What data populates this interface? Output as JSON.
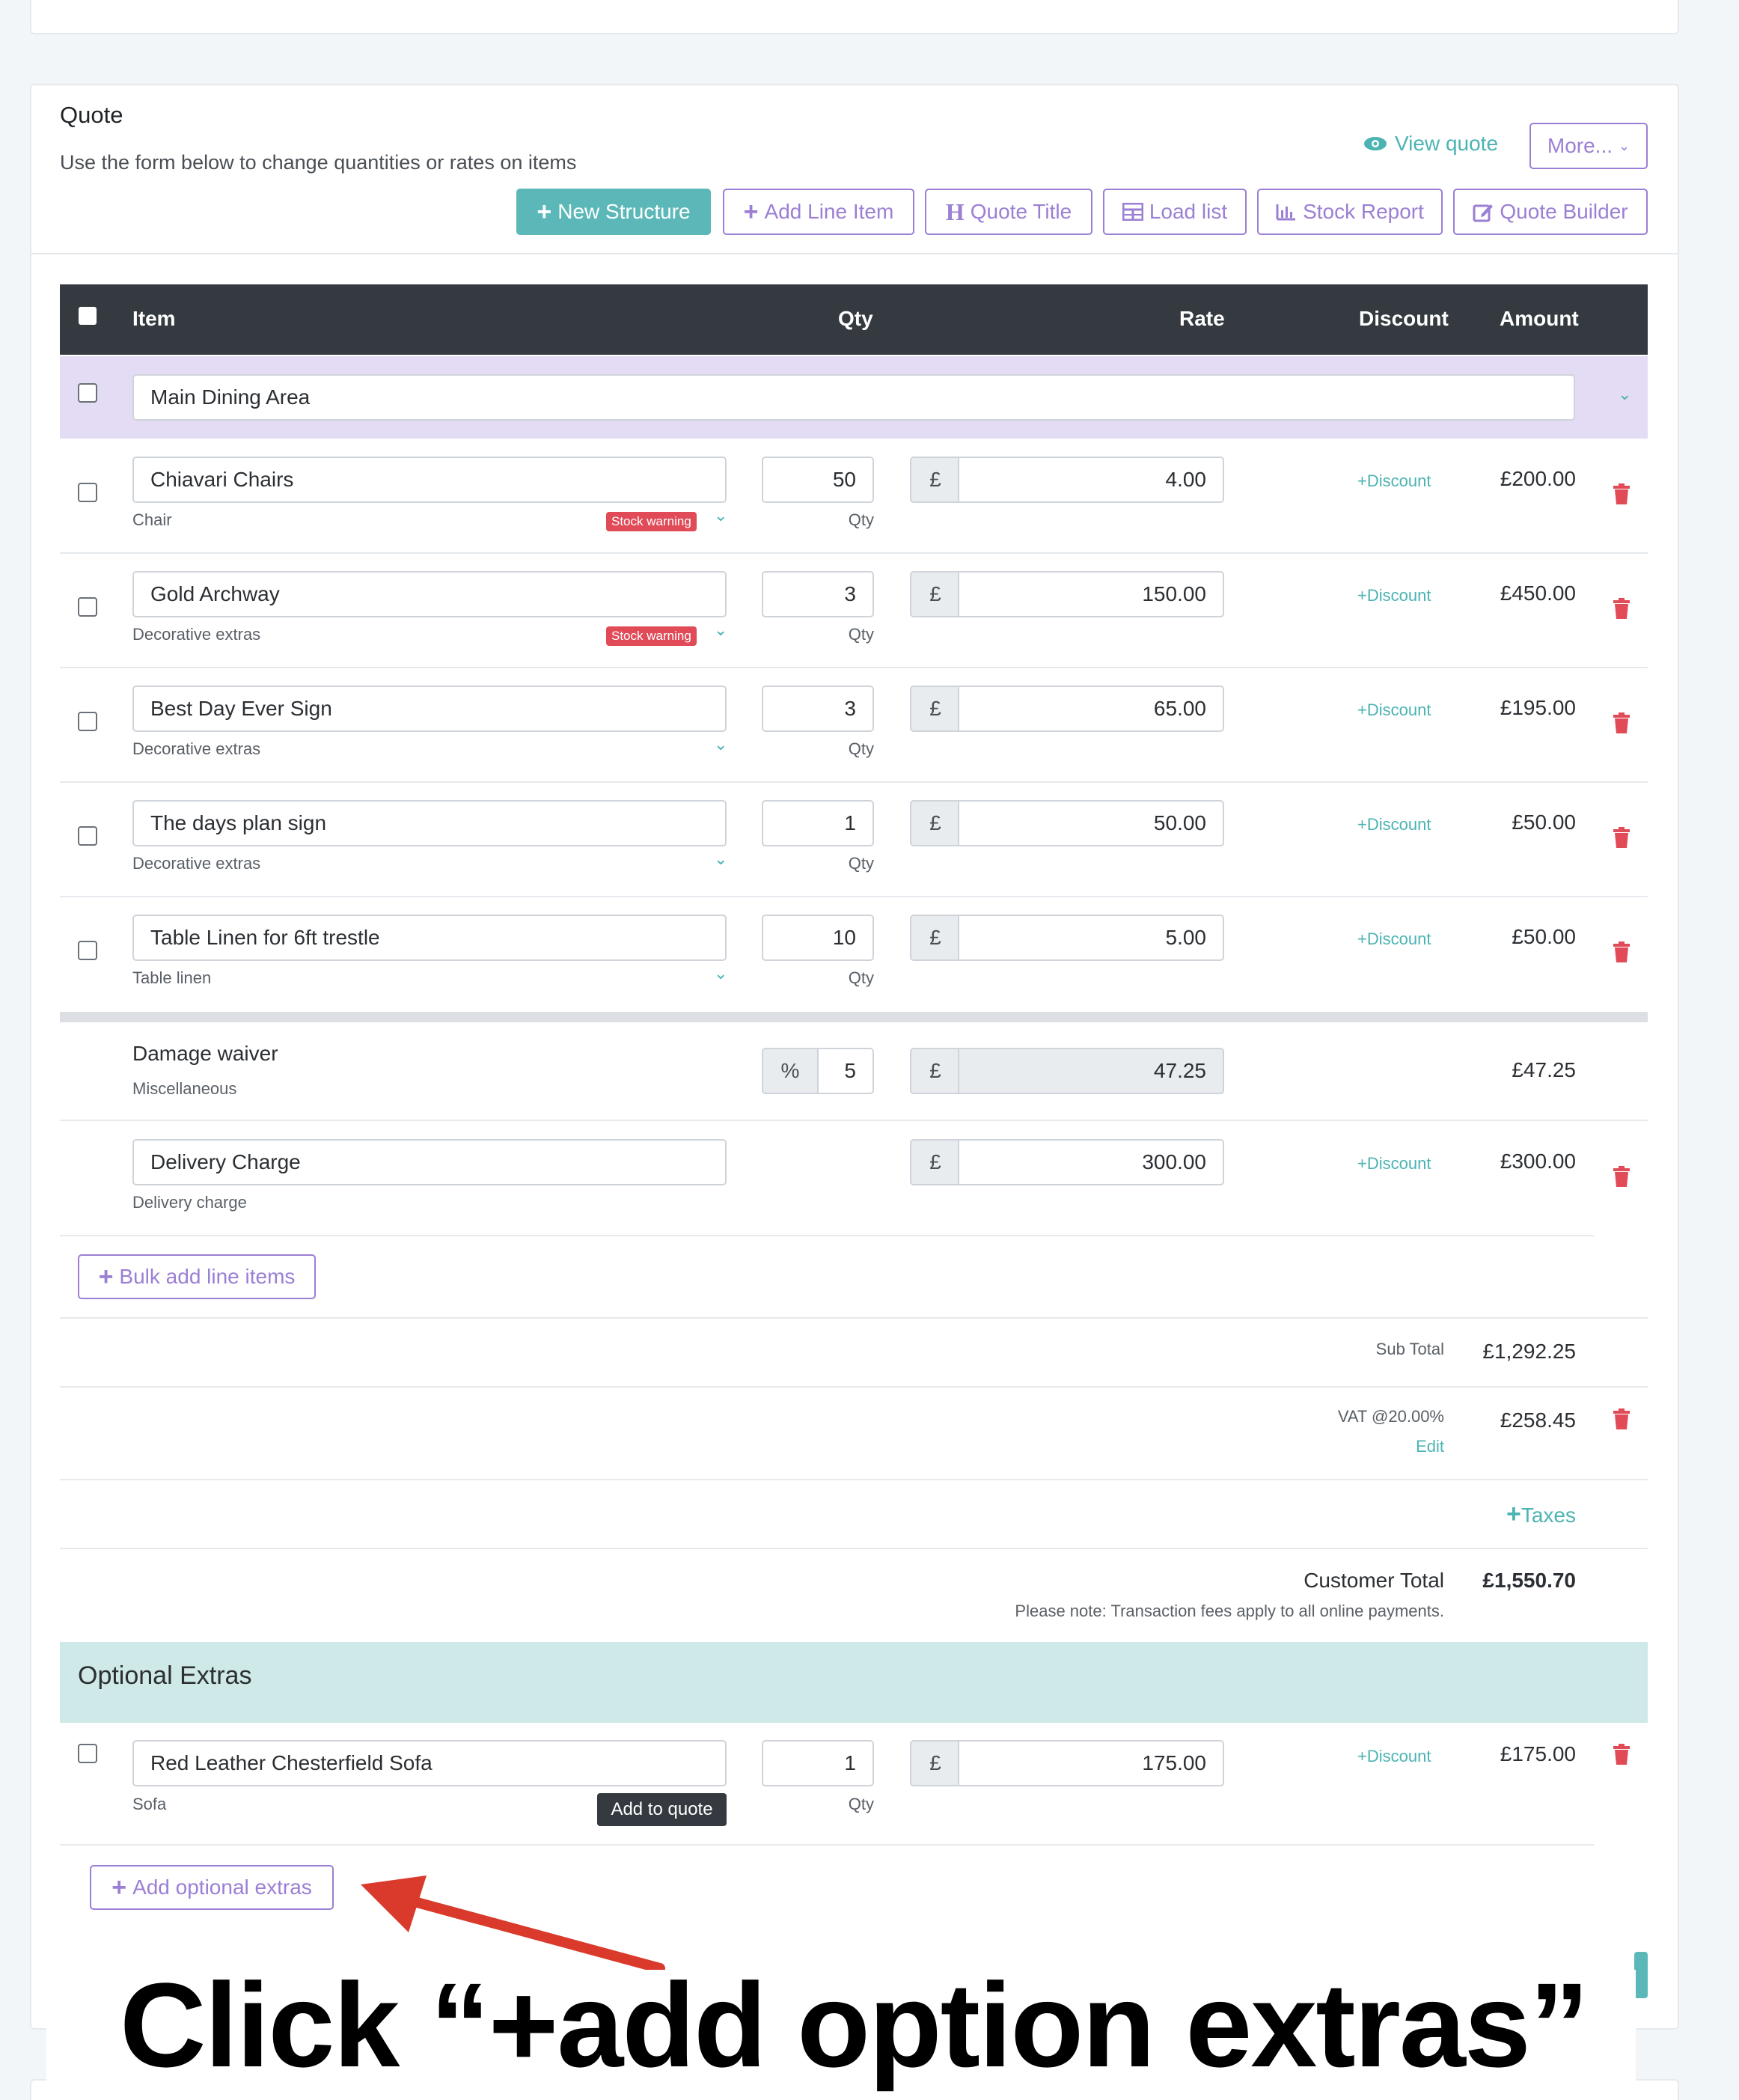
{
  "header": {
    "title": "Quote",
    "subtitle": "Use the form below to change quantities or rates on items",
    "view_quote": "View quote",
    "more": "More..."
  },
  "toolbar": {
    "new_structure": "New Structure",
    "add_line_item": "Add Line Item",
    "quote_title": "Quote Title",
    "load_list": "Load list",
    "stock_report": "Stock Report",
    "quote_builder": "Quote Builder"
  },
  "table": {
    "columns": [
      "Item",
      "Qty",
      "Rate",
      "Discount",
      "Amount"
    ]
  },
  "structure": {
    "name": "Main Dining Area"
  },
  "currency": "£",
  "discount_label": "Discount",
  "qty_label": "Qty",
  "stock_warning": "Stock warning",
  "items": [
    {
      "name": "Chiavari Chairs",
      "category": "Chair",
      "qty": "50",
      "rate": "4.00",
      "amount": "£200.00",
      "warning": true
    },
    {
      "name": "Gold Archway",
      "category": "Decorative extras",
      "qty": "3",
      "rate": "150.00",
      "amount": "£450.00",
      "warning": true
    },
    {
      "name": "Best Day Ever Sign",
      "category": "Decorative extras",
      "qty": "3",
      "rate": "65.00",
      "amount": "£195.00",
      "warning": false
    },
    {
      "name": "The days plan sign",
      "category": "Decorative extras",
      "qty": "1",
      "rate": "50.00",
      "amount": "£50.00",
      "warning": false
    },
    {
      "name": "Table Linen for 6ft trestle",
      "category": "Table linen",
      "qty": "10",
      "rate": "5.00",
      "amount": "£50.00",
      "warning": false
    }
  ],
  "damage_waiver": {
    "name": "Damage waiver",
    "category": "Miscellaneous",
    "percent_symbol": "%",
    "percent": "5",
    "rate": "47.25",
    "amount": "£47.25"
  },
  "delivery": {
    "name": "Delivery Charge",
    "category": "Delivery charge",
    "rate": "300.00",
    "amount": "£300.00"
  },
  "bulk_add": "Bulk add line items",
  "totals": {
    "subtotal_label": "Sub Total",
    "subtotal": "£1,292.25",
    "vat_label": "VAT @20.00%",
    "vat_edit": "Edit",
    "vat": "£258.45",
    "taxes": "Taxes",
    "customer_total_label": "Customer Total",
    "customer_total": "£1,550.70",
    "note": "Please note: Transaction fees apply to all online payments."
  },
  "optional": {
    "title": "Optional Extras",
    "item": {
      "name": "Red Leather Chesterfield Sofa",
      "category": "Sofa",
      "qty": "1",
      "rate": "175.00",
      "amount": "£175.00"
    },
    "add_to_quote": "Add to quote",
    "add_optional": "Add optional extras"
  },
  "annotation": {
    "text": "Click “+add option extras”",
    "arrow_color": "#d93a2b"
  },
  "colors": {
    "accent_purple": "#9b7fd4",
    "accent_teal": "#5cb8b8",
    "header_dark": "#343a40",
    "danger": "#e04b57"
  }
}
